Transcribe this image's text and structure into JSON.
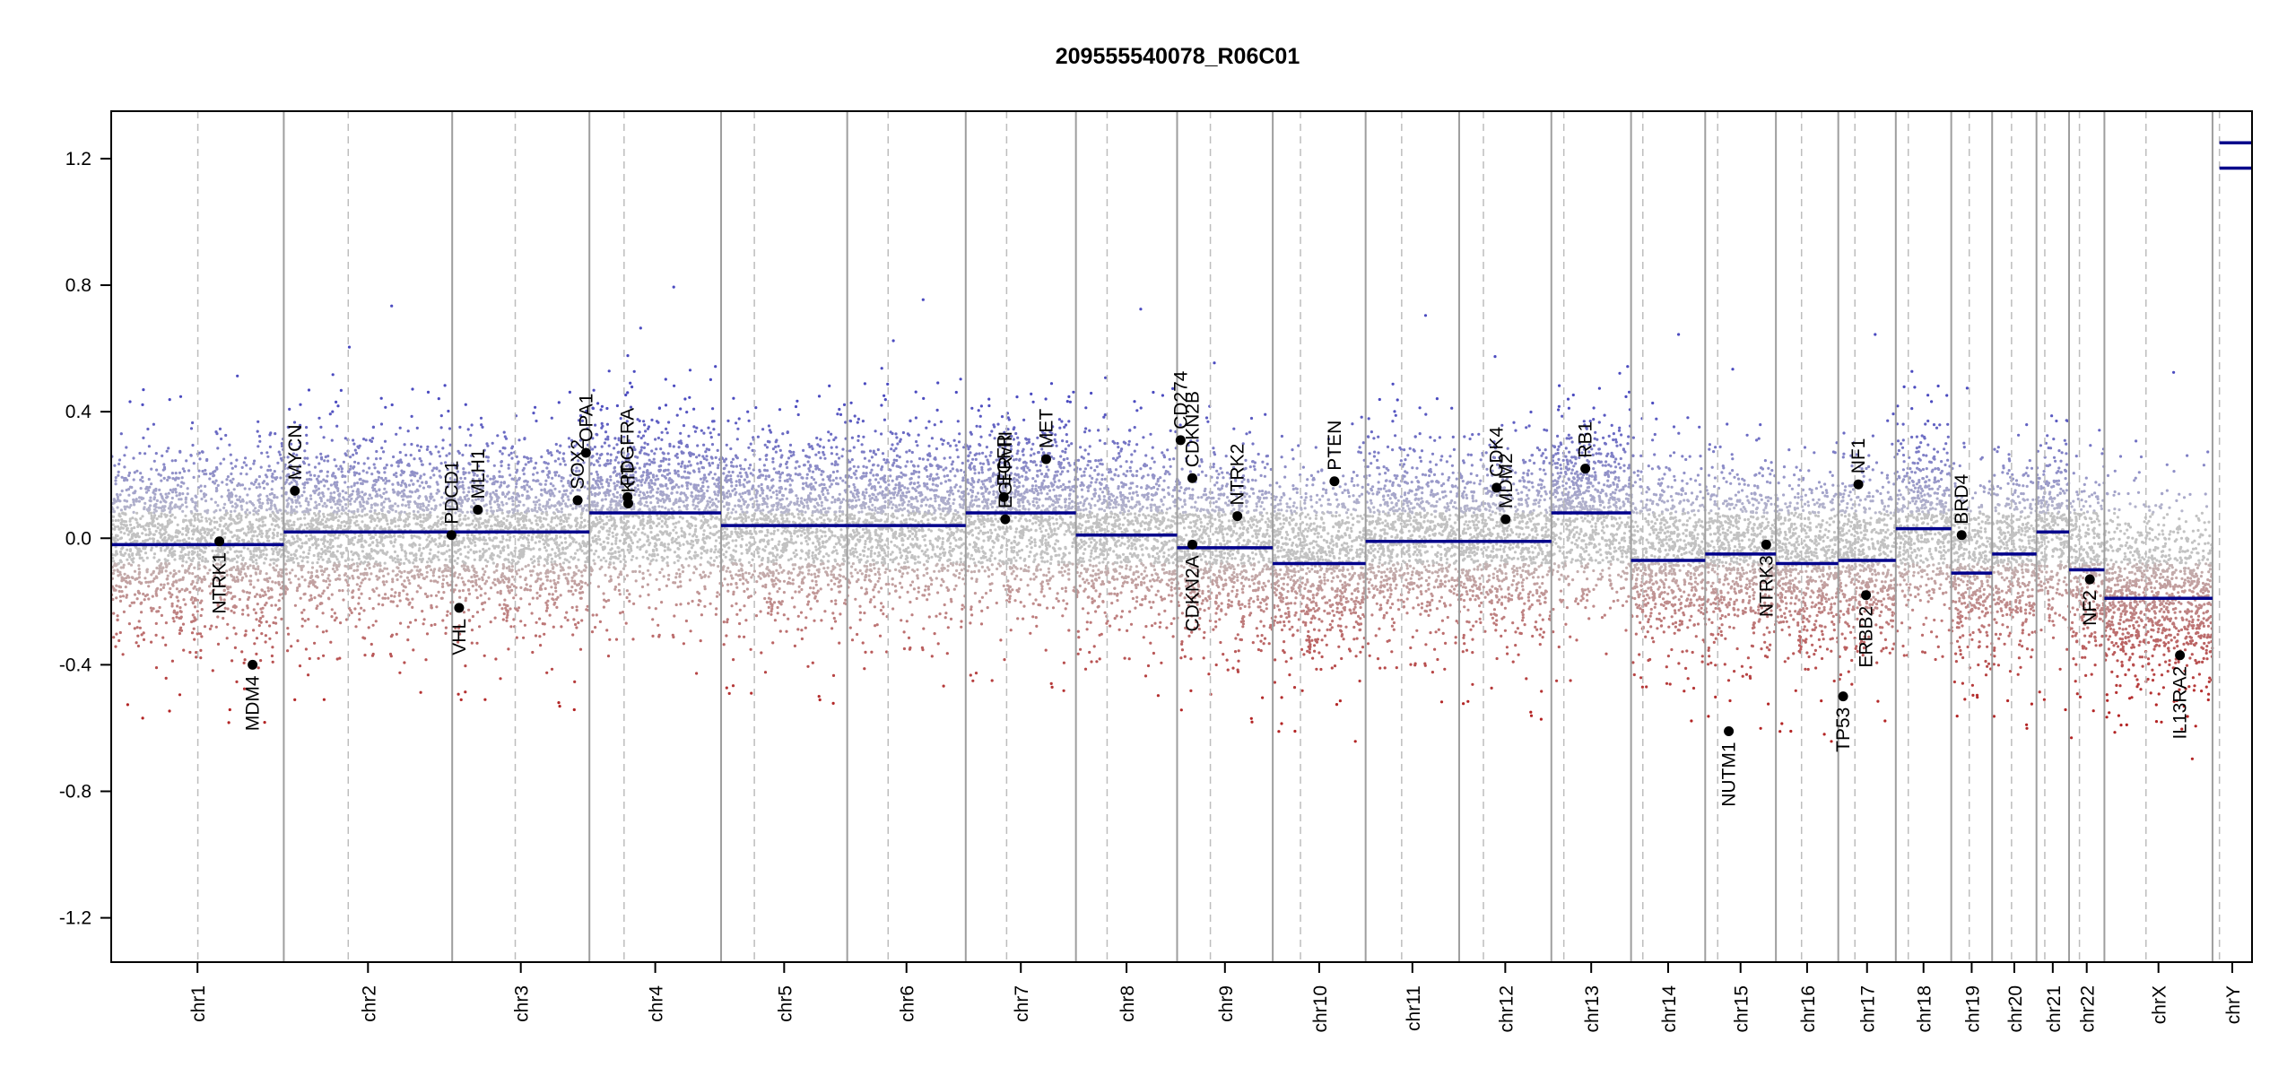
{
  "chart_data": {
    "type": "scatter",
    "title": "209555540078_R06C01",
    "xlabel": "",
    "ylabel": "",
    "ylim": [
      -1.34,
      1.35
    ],
    "yticks": [
      -1.2,
      -0.8,
      -0.4,
      0.0,
      0.4,
      0.8,
      1.2
    ],
    "grid": false,
    "colors": {
      "gain": "#4b4bc0",
      "loss": "#b32424",
      "neutral": "#9a9a9a",
      "segment": "#00008b",
      "chrom_border": "#9e9e9e",
      "centromere": "#bdbdbd"
    },
    "chromosomes": [
      {
        "name": "chr1",
        "start": 0,
        "end": 249,
        "cen": 125
      },
      {
        "name": "chr2",
        "start": 249,
        "end": 492,
        "cen": 342
      },
      {
        "name": "chr3",
        "start": 492,
        "end": 690,
        "cen": 583
      },
      {
        "name": "chr4",
        "start": 690,
        "end": 880,
        "cen": 740
      },
      {
        "name": "chr5",
        "start": 880,
        "end": 1062,
        "cen": 928
      },
      {
        "name": "chr6",
        "start": 1062,
        "end": 1233,
        "cen": 1121
      },
      {
        "name": "chr7",
        "start": 1233,
        "end": 1392,
        "cen": 1292
      },
      {
        "name": "chr8",
        "start": 1392,
        "end": 1538,
        "cen": 1437
      },
      {
        "name": "chr9",
        "start": 1538,
        "end": 1676,
        "cen": 1586
      },
      {
        "name": "chr10",
        "start": 1676,
        "end": 1810,
        "cen": 1716
      },
      {
        "name": "chr11",
        "start": 1810,
        "end": 1945,
        "cen": 1862
      },
      {
        "name": "chr12",
        "start": 1945,
        "end": 2078,
        "cen": 1980
      },
      {
        "name": "chr13",
        "start": 2078,
        "end": 2193,
        "cen": 2096
      },
      {
        "name": "chr14",
        "start": 2193,
        "end": 2300,
        "cen": 2210
      },
      {
        "name": "chr15",
        "start": 2300,
        "end": 2402,
        "cen": 2318
      },
      {
        "name": "chr16",
        "start": 2402,
        "end": 2492,
        "cen": 2439
      },
      {
        "name": "chr17",
        "start": 2492,
        "end": 2575,
        "cen": 2516
      },
      {
        "name": "chr18",
        "start": 2575,
        "end": 2655,
        "cen": 2593
      },
      {
        "name": "chr19",
        "start": 2655,
        "end": 2714,
        "cen": 2681
      },
      {
        "name": "chr20",
        "start": 2714,
        "end": 2778,
        "cen": 2742
      },
      {
        "name": "chr21",
        "start": 2778,
        "end": 2825,
        "cen": 2790
      },
      {
        "name": "chr22",
        "start": 2825,
        "end": 2876,
        "cen": 2840
      },
      {
        "name": "chrX",
        "start": 2876,
        "end": 3032,
        "cen": 2936
      },
      {
        "name": "chrY",
        "start": 3032,
        "end": 3089,
        "cen": 3042
      }
    ],
    "segments": [
      {
        "start": 0,
        "end": 249,
        "value": -0.02
      },
      {
        "start": 249,
        "end": 492,
        "value": 0.02
      },
      {
        "start": 492,
        "end": 690,
        "value": 0.02
      },
      {
        "start": 690,
        "end": 880,
        "value": 0.08
      },
      {
        "start": 880,
        "end": 1062,
        "value": 0.04
      },
      {
        "start": 1062,
        "end": 1233,
        "value": 0.04
      },
      {
        "start": 1233,
        "end": 1392,
        "value": 0.08
      },
      {
        "start": 1392,
        "end": 1538,
        "value": 0.01
      },
      {
        "start": 1538,
        "end": 1676,
        "value": -0.03
      },
      {
        "start": 1676,
        "end": 1810,
        "value": -0.08
      },
      {
        "start": 1810,
        "end": 1945,
        "value": -0.01
      },
      {
        "start": 1945,
        "end": 2078,
        "value": -0.01
      },
      {
        "start": 2078,
        "end": 2193,
        "value": 0.08
      },
      {
        "start": 2193,
        "end": 2300,
        "value": -0.07
      },
      {
        "start": 2300,
        "end": 2402,
        "value": -0.05
      },
      {
        "start": 2402,
        "end": 2492,
        "value": -0.08
      },
      {
        "start": 2492,
        "end": 2575,
        "value": -0.07
      },
      {
        "start": 2575,
        "end": 2655,
        "value": 0.03
      },
      {
        "start": 2655,
        "end": 2714,
        "value": -0.11
      },
      {
        "start": 2714,
        "end": 2778,
        "value": -0.05
      },
      {
        "start": 2778,
        "end": 2825,
        "value": 0.02
      },
      {
        "start": 2825,
        "end": 2876,
        "value": -0.1
      },
      {
        "start": 2876,
        "end": 3032,
        "value": -0.19
      },
      {
        "start": 3042,
        "end": 3089,
        "value": 1.17
      },
      {
        "start": 3042,
        "end": 3089,
        "value": 1.25
      }
    ],
    "genes": [
      {
        "name": "NTRK1",
        "pos": 156,
        "value": -0.01,
        "side": "below"
      },
      {
        "name": "MDM4",
        "pos": 204,
        "value": -0.4,
        "side": "below"
      },
      {
        "name": "MYCN",
        "pos": 265,
        "value": 0.15,
        "side": "above"
      },
      {
        "name": "PDCD1",
        "pos": 491,
        "value": 0.01,
        "side": "above"
      },
      {
        "name": "VHL",
        "pos": 502,
        "value": -0.22,
        "side": "below"
      },
      {
        "name": "MLH1",
        "pos": 529,
        "value": 0.09,
        "side": "above"
      },
      {
        "name": "SOX2",
        "pos": 673,
        "value": 0.12,
        "side": "above"
      },
      {
        "name": "OPA1",
        "pos": 685,
        "value": 0.27,
        "side": "above"
      },
      {
        "name": "PDGFRA",
        "pos": 745,
        "value": 0.13,
        "side": "above"
      },
      {
        "name": "KIT",
        "pos": 746,
        "value": 0.11,
        "side": "above"
      },
      {
        "name": "EGFR",
        "pos": 1288,
        "value": 0.13,
        "side": "above"
      },
      {
        "name": "EGFRvIII",
        "pos": 1290,
        "value": 0.06,
        "side": "above"
      },
      {
        "name": "MET",
        "pos": 1349,
        "value": 0.25,
        "side": "above"
      },
      {
        "name": "CD274",
        "pos": 1543,
        "value": 0.31,
        "side": "above"
      },
      {
        "name": "CDKN2B",
        "pos": 1560,
        "value": 0.19,
        "side": "above"
      },
      {
        "name": "CDKN2A",
        "pos": 1560,
        "value": -0.02,
        "side": "below"
      },
      {
        "name": "NTRK2",
        "pos": 1625,
        "value": 0.07,
        "side": "above"
      },
      {
        "name": "PTEN",
        "pos": 1765,
        "value": 0.18,
        "side": "above"
      },
      {
        "name": "CDK4",
        "pos": 1999,
        "value": 0.16,
        "side": "above"
      },
      {
        "name": "MDM2",
        "pos": 2012,
        "value": 0.06,
        "side": "above"
      },
      {
        "name": "RB1",
        "pos": 2127,
        "value": 0.22,
        "side": "above"
      },
      {
        "name": "NUTM1",
        "pos": 2334,
        "value": -0.61,
        "side": "below"
      },
      {
        "name": "NTRK3",
        "pos": 2388,
        "value": -0.02,
        "side": "below"
      },
      {
        "name": "TP53",
        "pos": 2499,
        "value": -0.5,
        "side": "below"
      },
      {
        "name": "NF1",
        "pos": 2521,
        "value": 0.17,
        "side": "above"
      },
      {
        "name": "ERBB2",
        "pos": 2532,
        "value": -0.18,
        "side": "below"
      },
      {
        "name": "BRD4",
        "pos": 2670,
        "value": 0.01,
        "side": "above"
      },
      {
        "name": "NF2",
        "pos": 2855,
        "value": -0.13,
        "side": "below"
      },
      {
        "name": "IL13RA2",
        "pos": 2985,
        "value": -0.37,
        "side": "below"
      }
    ]
  }
}
